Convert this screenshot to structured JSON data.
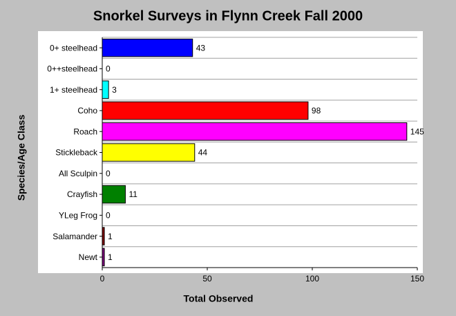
{
  "chart_data": {
    "type": "hbar",
    "title": "Snorkel Surveys in Flynn Creek Fall 2000",
    "xlabel": "Total Observed",
    "ylabel": "Species/Age Class",
    "categories": [
      "0+ steelhead",
      "0++steelhead",
      "1+ steelhead",
      "Coho",
      "Roach",
      "Stickleback",
      "All Sculpin",
      "Crayfish",
      "YLeg Frog",
      "Salamander",
      "Newt"
    ],
    "values": [
      43,
      0,
      3,
      98,
      145,
      44,
      0,
      11,
      0,
      1,
      1
    ],
    "colors": [
      "#0000ff",
      "#000080",
      "#00ffff",
      "#ff0000",
      "#ff00ff",
      "#ffff00",
      "#808080",
      "#008000",
      "#808000",
      "#800000",
      "#800080"
    ],
    "xlim": [
      0,
      150
    ],
    "xticks": [
      0,
      50,
      100,
      150
    ],
    "grid": true
  }
}
